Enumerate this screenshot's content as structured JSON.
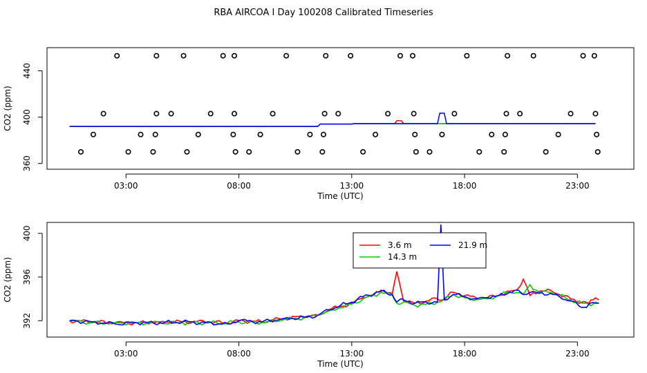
{
  "title": "RBA AIRCOA I  Day 100208  Calibrated Timeseries",
  "chart_data": [
    {
      "type": "scatter",
      "xlabel": "Time (UTC)",
      "ylabel": "CO2 (ppm)",
      "xlim": [
        -0.5,
        25.5
      ],
      "ylim": [
        355,
        460
      ],
      "x_ticks": [
        {
          "value": 3,
          "label": "03:00"
        },
        {
          "value": 8,
          "label": "08:00"
        },
        {
          "value": 13,
          "label": "13:00"
        },
        {
          "value": 18,
          "label": "18:00"
        },
        {
          "value": 23,
          "label": "23:00"
        }
      ],
      "y_ticks": [
        {
          "value": 360,
          "label": "360"
        },
        {
          "value": 400,
          "label": "400"
        },
        {
          "value": 440,
          "label": "440"
        }
      ],
      "points": [
        [
          1.0,
          370
        ],
        [
          1.55,
          385
        ],
        [
          2.0,
          403
        ],
        [
          2.6,
          453
        ],
        [
          3.1,
          370
        ],
        [
          3.65,
          385
        ],
        [
          4.2,
          370
        ],
        [
          4.3,
          385
        ],
        [
          4.35,
          403
        ],
        [
          4.35,
          453
        ],
        [
          5.0,
          403
        ],
        [
          5.55,
          453
        ],
        [
          5.7,
          370
        ],
        [
          6.2,
          385
        ],
        [
          6.75,
          403
        ],
        [
          7.3,
          453
        ],
        [
          7.75,
          385
        ],
        [
          7.8,
          403
        ],
        [
          7.8,
          453
        ],
        [
          7.85,
          370
        ],
        [
          8.45,
          370
        ],
        [
          8.95,
          385
        ],
        [
          9.5,
          403
        ],
        [
          10.1,
          453
        ],
        [
          10.6,
          370
        ],
        [
          11.15,
          385
        ],
        [
          11.7,
          370
        ],
        [
          11.75,
          385
        ],
        [
          11.8,
          403
        ],
        [
          11.85,
          453
        ],
        [
          12.4,
          403
        ],
        [
          12.95,
          453
        ],
        [
          13.5,
          370
        ],
        [
          14.05,
          385
        ],
        [
          14.6,
          403
        ],
        [
          15.15,
          453
        ],
        [
          15.7,
          453
        ],
        [
          15.75,
          403
        ],
        [
          15.8,
          385
        ],
        [
          15.85,
          370
        ],
        [
          16.45,
          370
        ],
        [
          17.0,
          385
        ],
        [
          17.55,
          403
        ],
        [
          18.1,
          453
        ],
        [
          18.65,
          370
        ],
        [
          19.2,
          385
        ],
        [
          19.75,
          370
        ],
        [
          19.8,
          385
        ],
        [
          19.85,
          403
        ],
        [
          19.9,
          453
        ],
        [
          20.45,
          403
        ],
        [
          21.05,
          453
        ],
        [
          21.6,
          370
        ],
        [
          22.15,
          385
        ],
        [
          22.7,
          403
        ],
        [
          23.25,
          453
        ],
        [
          23.75,
          453
        ],
        [
          23.8,
          403
        ],
        [
          23.85,
          385
        ],
        [
          23.9,
          370
        ]
      ],
      "line_value": 392,
      "line_x": [
        0.5,
        23.8
      ],
      "series_colors": [
        "#ff0000",
        "#00cc00",
        "#0000ff"
      ]
    },
    {
      "type": "line",
      "xlabel": "Time (UTC)",
      "ylabel": "CO2 (ppm)",
      "xlim": [
        -0.5,
        25.5
      ],
      "ylim": [
        390.5,
        401
      ],
      "x_ticks": [
        {
          "value": 3,
          "label": "03:00"
        },
        {
          "value": 8,
          "label": "08:00"
        },
        {
          "value": 13,
          "label": "13:00"
        },
        {
          "value": 18,
          "label": "18:00"
        },
        {
          "value": 23,
          "label": "23:00"
        }
      ],
      "y_ticks": [
        {
          "value": 392,
          "label": "392"
        },
        {
          "value": 396,
          "label": "396"
        },
        {
          "value": 400,
          "label": "400"
        }
      ],
      "legend": {
        "position": "top-center",
        "entries": [
          {
            "label": "3.6 m",
            "color": "#ff0000"
          },
          {
            "label": "21.9 m",
            "color": "#0000ff"
          },
          {
            "label": "14.3 m",
            "color": "#00cc00"
          }
        ]
      },
      "series": [
        {
          "name": "3.6 m",
          "color": "#ff0000",
          "points": [
            [
              0.5,
              392.0
            ],
            [
              1.5,
              391.9
            ],
            [
              2.5,
              391.8
            ],
            [
              3.5,
              391.8
            ],
            [
              4.5,
              391.9
            ],
            [
              5.5,
              391.9
            ],
            [
              6.5,
              391.9
            ],
            [
              7.5,
              391.8
            ],
            [
              8.0,
              392.0
            ],
            [
              9.0,
              391.9
            ],
            [
              10.0,
              392.2
            ],
            [
              11.0,
              392.4
            ],
            [
              11.5,
              392.5
            ],
            [
              12.0,
              393.0
            ],
            [
              12.5,
              393.3
            ],
            [
              13.0,
              393.6
            ],
            [
              13.5,
              394.1
            ],
            [
              14.0,
              394.4
            ],
            [
              14.3,
              394.8
            ],
            [
              14.8,
              394.5
            ],
            [
              15.0,
              396.5
            ],
            [
              15.3,
              393.8
            ],
            [
              15.8,
              393.6
            ],
            [
              16.3,
              393.8
            ],
            [
              16.8,
              394.0
            ],
            [
              17.0,
              393.9
            ],
            [
              17.5,
              394.6
            ],
            [
              18.0,
              394.3
            ],
            [
              18.5,
              394.1
            ],
            [
              19.0,
              394.1
            ],
            [
              19.5,
              394.3
            ],
            [
              20.0,
              394.7
            ],
            [
              20.3,
              394.8
            ],
            [
              20.6,
              395.8
            ],
            [
              20.9,
              394.3
            ],
            [
              21.3,
              394.7
            ],
            [
              21.8,
              394.8
            ],
            [
              22.2,
              394.4
            ],
            [
              22.7,
              394.0
            ],
            [
              23.2,
              393.7
            ],
            [
              23.5,
              393.6
            ],
            [
              23.8,
              394.1
            ],
            [
              23.95,
              393.9
            ]
          ]
        },
        {
          "name": "14.3 m",
          "color": "#00cc00",
          "points": [
            [
              0.5,
              392.0
            ],
            [
              1.5,
              391.8
            ],
            [
              2.5,
              391.8
            ],
            [
              3.5,
              391.8
            ],
            [
              4.5,
              391.8
            ],
            [
              5.5,
              391.8
            ],
            [
              6.5,
              391.8
            ],
            [
              7.5,
              391.8
            ],
            [
              8.0,
              391.9
            ],
            [
              9.0,
              391.8
            ],
            [
              10.0,
              392.1
            ],
            [
              11.0,
              392.3
            ],
            [
              11.5,
              392.5
            ],
            [
              12.0,
              392.9
            ],
            [
              12.5,
              393.2
            ],
            [
              13.0,
              393.5
            ],
            [
              13.5,
              394.0
            ],
            [
              14.0,
              394.3
            ],
            [
              14.3,
              394.6
            ],
            [
              14.8,
              394.3
            ],
            [
              15.0,
              393.6
            ],
            [
              15.3,
              393.7
            ],
            [
              15.8,
              393.4
            ],
            [
              16.3,
              393.5
            ],
            [
              16.8,
              393.7
            ],
            [
              17.0,
              393.8
            ],
            [
              17.5,
              394.4
            ],
            [
              18.0,
              394.1
            ],
            [
              18.5,
              393.9
            ],
            [
              19.0,
              394.0
            ],
            [
              19.5,
              394.3
            ],
            [
              20.0,
              394.6
            ],
            [
              20.3,
              394.6
            ],
            [
              20.6,
              394.4
            ],
            [
              20.9,
              395.3
            ],
            [
              21.3,
              394.6
            ],
            [
              21.8,
              394.6
            ],
            [
              22.2,
              394.3
            ],
            [
              22.7,
              393.9
            ],
            [
              23.2,
              393.6
            ],
            [
              23.5,
              393.5
            ],
            [
              23.8,
              393.7
            ],
            [
              23.95,
              393.6
            ]
          ]
        },
        {
          "name": "21.9 m",
          "color": "#0000ff",
          "points": [
            [
              0.5,
              392.0
            ],
            [
              1.5,
              391.9
            ],
            [
              2.5,
              391.7
            ],
            [
              3.5,
              391.8
            ],
            [
              4.5,
              391.8
            ],
            [
              5.5,
              391.9
            ],
            [
              6.5,
              391.8
            ],
            [
              7.5,
              391.7
            ],
            [
              8.0,
              392.0
            ],
            [
              9.0,
              391.9
            ],
            [
              10.0,
              392.2
            ],
            [
              11.0,
              392.3
            ],
            [
              11.5,
              392.5
            ],
            [
              12.0,
              393.0
            ],
            [
              12.5,
              393.4
            ],
            [
              13.0,
              393.7
            ],
            [
              13.5,
              394.2
            ],
            [
              14.0,
              394.5
            ],
            [
              14.3,
              394.7
            ],
            [
              14.8,
              394.4
            ],
            [
              15.0,
              393.7
            ],
            [
              15.3,
              393.9
            ],
            [
              15.8,
              393.6
            ],
            [
              16.3,
              393.7
            ],
            [
              16.8,
              393.7
            ],
            [
              16.95,
              400.8
            ],
            [
              17.1,
              393.9
            ],
            [
              17.5,
              394.4
            ],
            [
              18.0,
              394.2
            ],
            [
              18.5,
              394.0
            ],
            [
              19.0,
              394.1
            ],
            [
              19.5,
              394.3
            ],
            [
              20.0,
              394.6
            ],
            [
              20.3,
              394.8
            ],
            [
              20.6,
              394.4
            ],
            [
              20.9,
              394.6
            ],
            [
              21.3,
              394.5
            ],
            [
              21.8,
              394.5
            ],
            [
              22.2,
              394.2
            ],
            [
              22.7,
              393.8
            ],
            [
              23.2,
              393.2
            ],
            [
              23.5,
              393.5
            ],
            [
              23.8,
              393.6
            ],
            [
              23.95,
              393.6
            ]
          ]
        }
      ]
    }
  ]
}
